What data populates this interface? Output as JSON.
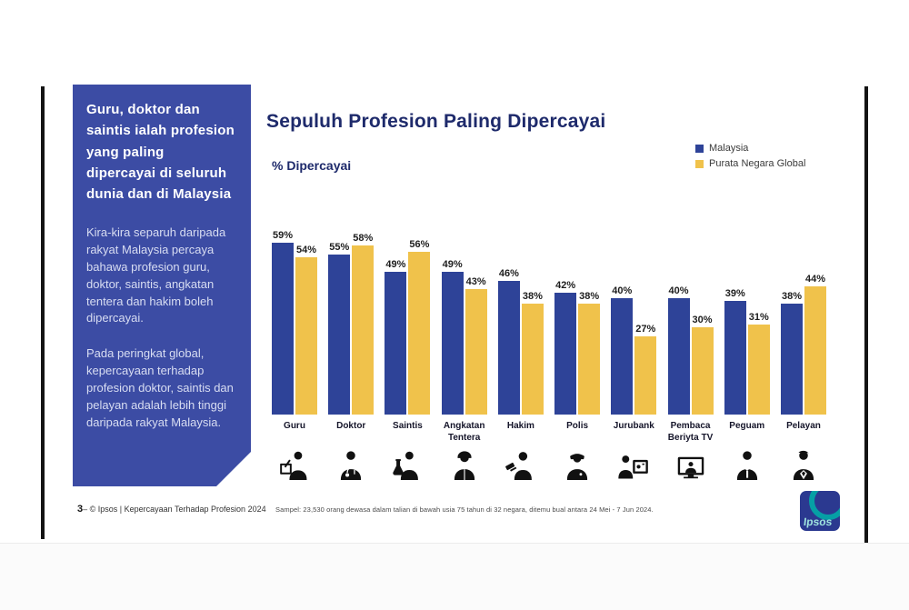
{
  "sidebar": {
    "heading": "Guru, doktor dan saintis ialah profesion yang paling dipercayai di seluruh dunia dan di Malaysia",
    "para1": "Kira-kira separuh daripada rakyat Malaysia percaya bahawa profesion guru, doktor, saintis, angkatan tentera dan hakim boleh dipercayai.",
    "para2": "Pada peringkat global, kepercayaan terhadap profesion doktor, saintis dan pelayan adalah lebih tinggi daripada rakyat Malaysia."
  },
  "header": {
    "title": "Sepuluh Profesion Paling Dipercayai",
    "axis_label": "% Dipercayai"
  },
  "legend": [
    {
      "label": "Malaysia",
      "color": "#2E4398"
    },
    {
      "label": "Purata Negara Global",
      "color": "#F0C24B"
    }
  ],
  "chart_data": {
    "type": "bar",
    "title": "Sepuluh Profesion Paling Dipercayai",
    "ylabel": "% Dipercayai",
    "ylim": [
      0,
      60
    ],
    "grid": false,
    "legend_position": "top-right",
    "value_suffix": "%",
    "categories": [
      "Guru",
      "Doktor",
      "Saintis",
      "Angkatan Tentera",
      "Hakim",
      "Polis",
      "Jurubank",
      "Pembaca Beriyta TV",
      "Peguam",
      "Pelayan"
    ],
    "series": [
      {
        "name": "Malaysia",
        "color": "#2E4398",
        "values": [
          59,
          55,
          49,
          49,
          46,
          42,
          40,
          40,
          39,
          38
        ]
      },
      {
        "name": "Purata Negara Global",
        "color": "#F0C24B",
        "values": [
          54,
          58,
          56,
          43,
          38,
          38,
          27,
          30,
          31,
          44
        ]
      }
    ]
  },
  "icons": [
    "teacher-icon",
    "doctor-icon",
    "scientist-icon",
    "soldier-icon",
    "judge-icon",
    "police-icon",
    "banker-icon",
    "tv-presenter-icon",
    "lawyer-icon",
    "waiter-icon"
  ],
  "footer": {
    "page_number": "3",
    "separator": "–",
    "copyright": "© Ipsos | Kepercayaan Terhadap Profesion 2024",
    "sample_note": "Sampel: 23,530 orang dewasa dalam talian di bawah usia 75 tahun di 32 negara, ditemu bual antara 24 Mei - 7 Jun 2024.",
    "logo_text": "Ipsos"
  },
  "colors": {
    "sidebar_bg": "#3C4CA4",
    "title_navy": "#1E2A6B",
    "bar_blue": "#2E4398",
    "bar_yellow": "#F0C24B"
  }
}
